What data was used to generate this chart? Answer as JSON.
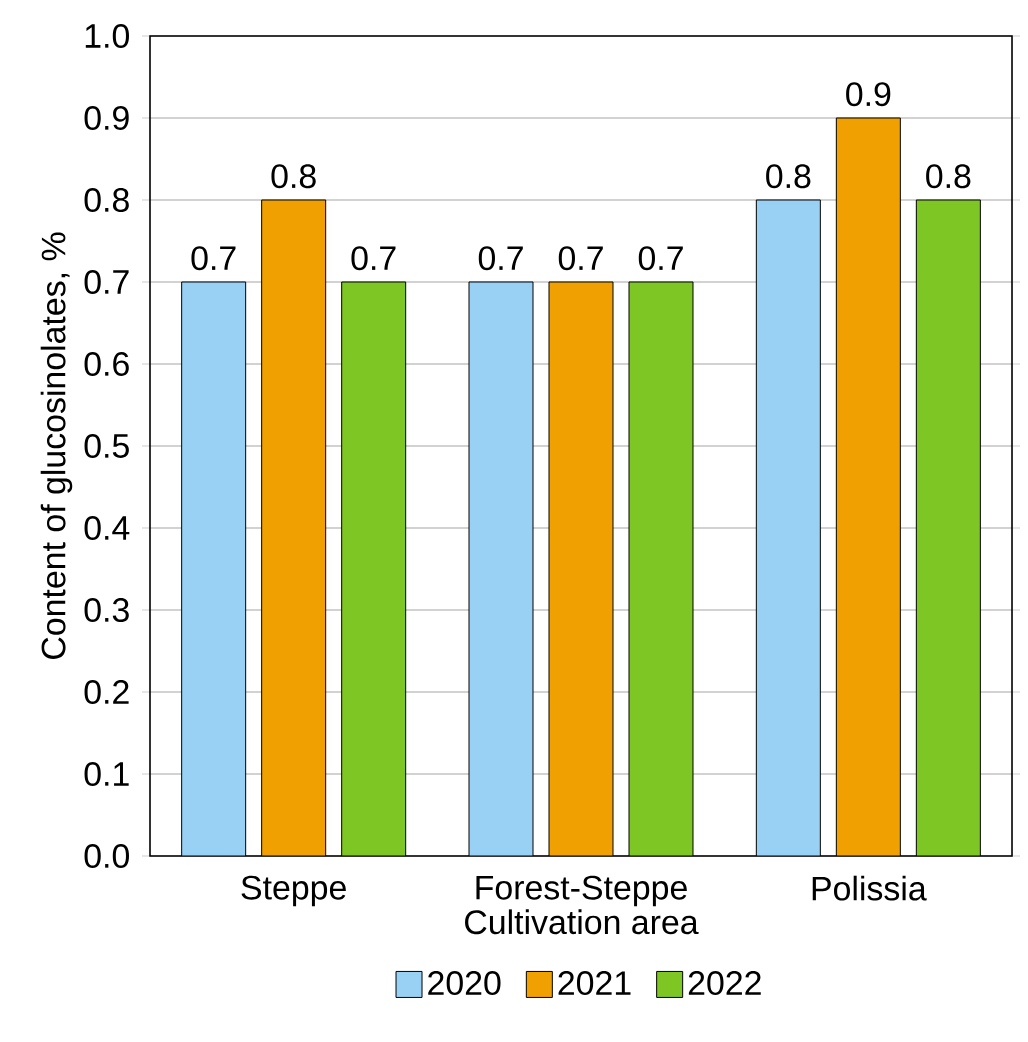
{
  "chart_data": {
    "type": "bar",
    "xlabel": "Cultivation area",
    "ylabel": "Content of glucosinolates, %",
    "categories": [
      "Steppe",
      "Forest-Steppe",
      "Polissia"
    ],
    "series": [
      {
        "name": "2020",
        "color": "#99d1f4",
        "values": [
          0.7,
          0.7,
          0.8
        ]
      },
      {
        "name": "2021",
        "color": "#f0a000",
        "values": [
          0.8,
          0.7,
          0.9
        ]
      },
      {
        "name": "2022",
        "color": "#7dc623",
        "values": [
          0.7,
          0.7,
          0.8
        ]
      }
    ],
    "ylim": [
      0,
      1
    ],
    "yticks": [
      {
        "value": 0,
        "label": "0.0"
      },
      0.1,
      0.2,
      0.3,
      0.4,
      0.5,
      0.6,
      0.7,
      0.8,
      0.9,
      {
        "value": 1,
        "label": "1.0"
      }
    ],
    "data_labels": true,
    "grid": "y",
    "legend": "bottom"
  }
}
